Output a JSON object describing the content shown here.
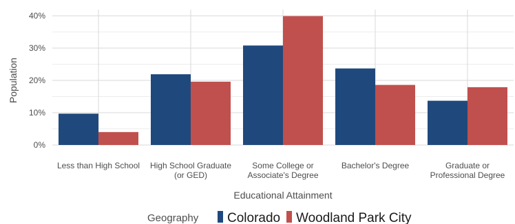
{
  "chart_data": {
    "type": "bar",
    "xlabel": "Educational Attainment",
    "ylabel": "Population",
    "ylim": [
      0,
      0.42
    ],
    "yticks": [
      0,
      0.1,
      0.2,
      0.3,
      0.4
    ],
    "ytick_labels": [
      "0%",
      "10%",
      "20%",
      "30%",
      "40%"
    ],
    "categories": [
      [
        "Less than High School"
      ],
      [
        "High School Graduate",
        "(or GED)"
      ],
      [
        "Some College or",
        "Associate's Degree"
      ],
      [
        "Bachelor's Degree"
      ],
      [
        "Graduate or",
        "Professional Degree"
      ]
    ],
    "series": [
      {
        "name": "Colorado",
        "color": "#1f497d",
        "values": [
          0.097,
          0.219,
          0.308,
          0.237,
          0.137
        ]
      },
      {
        "name": "Woodland Park City",
        "color": "#c0504d",
        "values": [
          0.04,
          0.196,
          0.399,
          0.186,
          0.179
        ]
      }
    ],
    "grid": true,
    "legend": {
      "title": "Geography",
      "position": "bottom"
    }
  }
}
